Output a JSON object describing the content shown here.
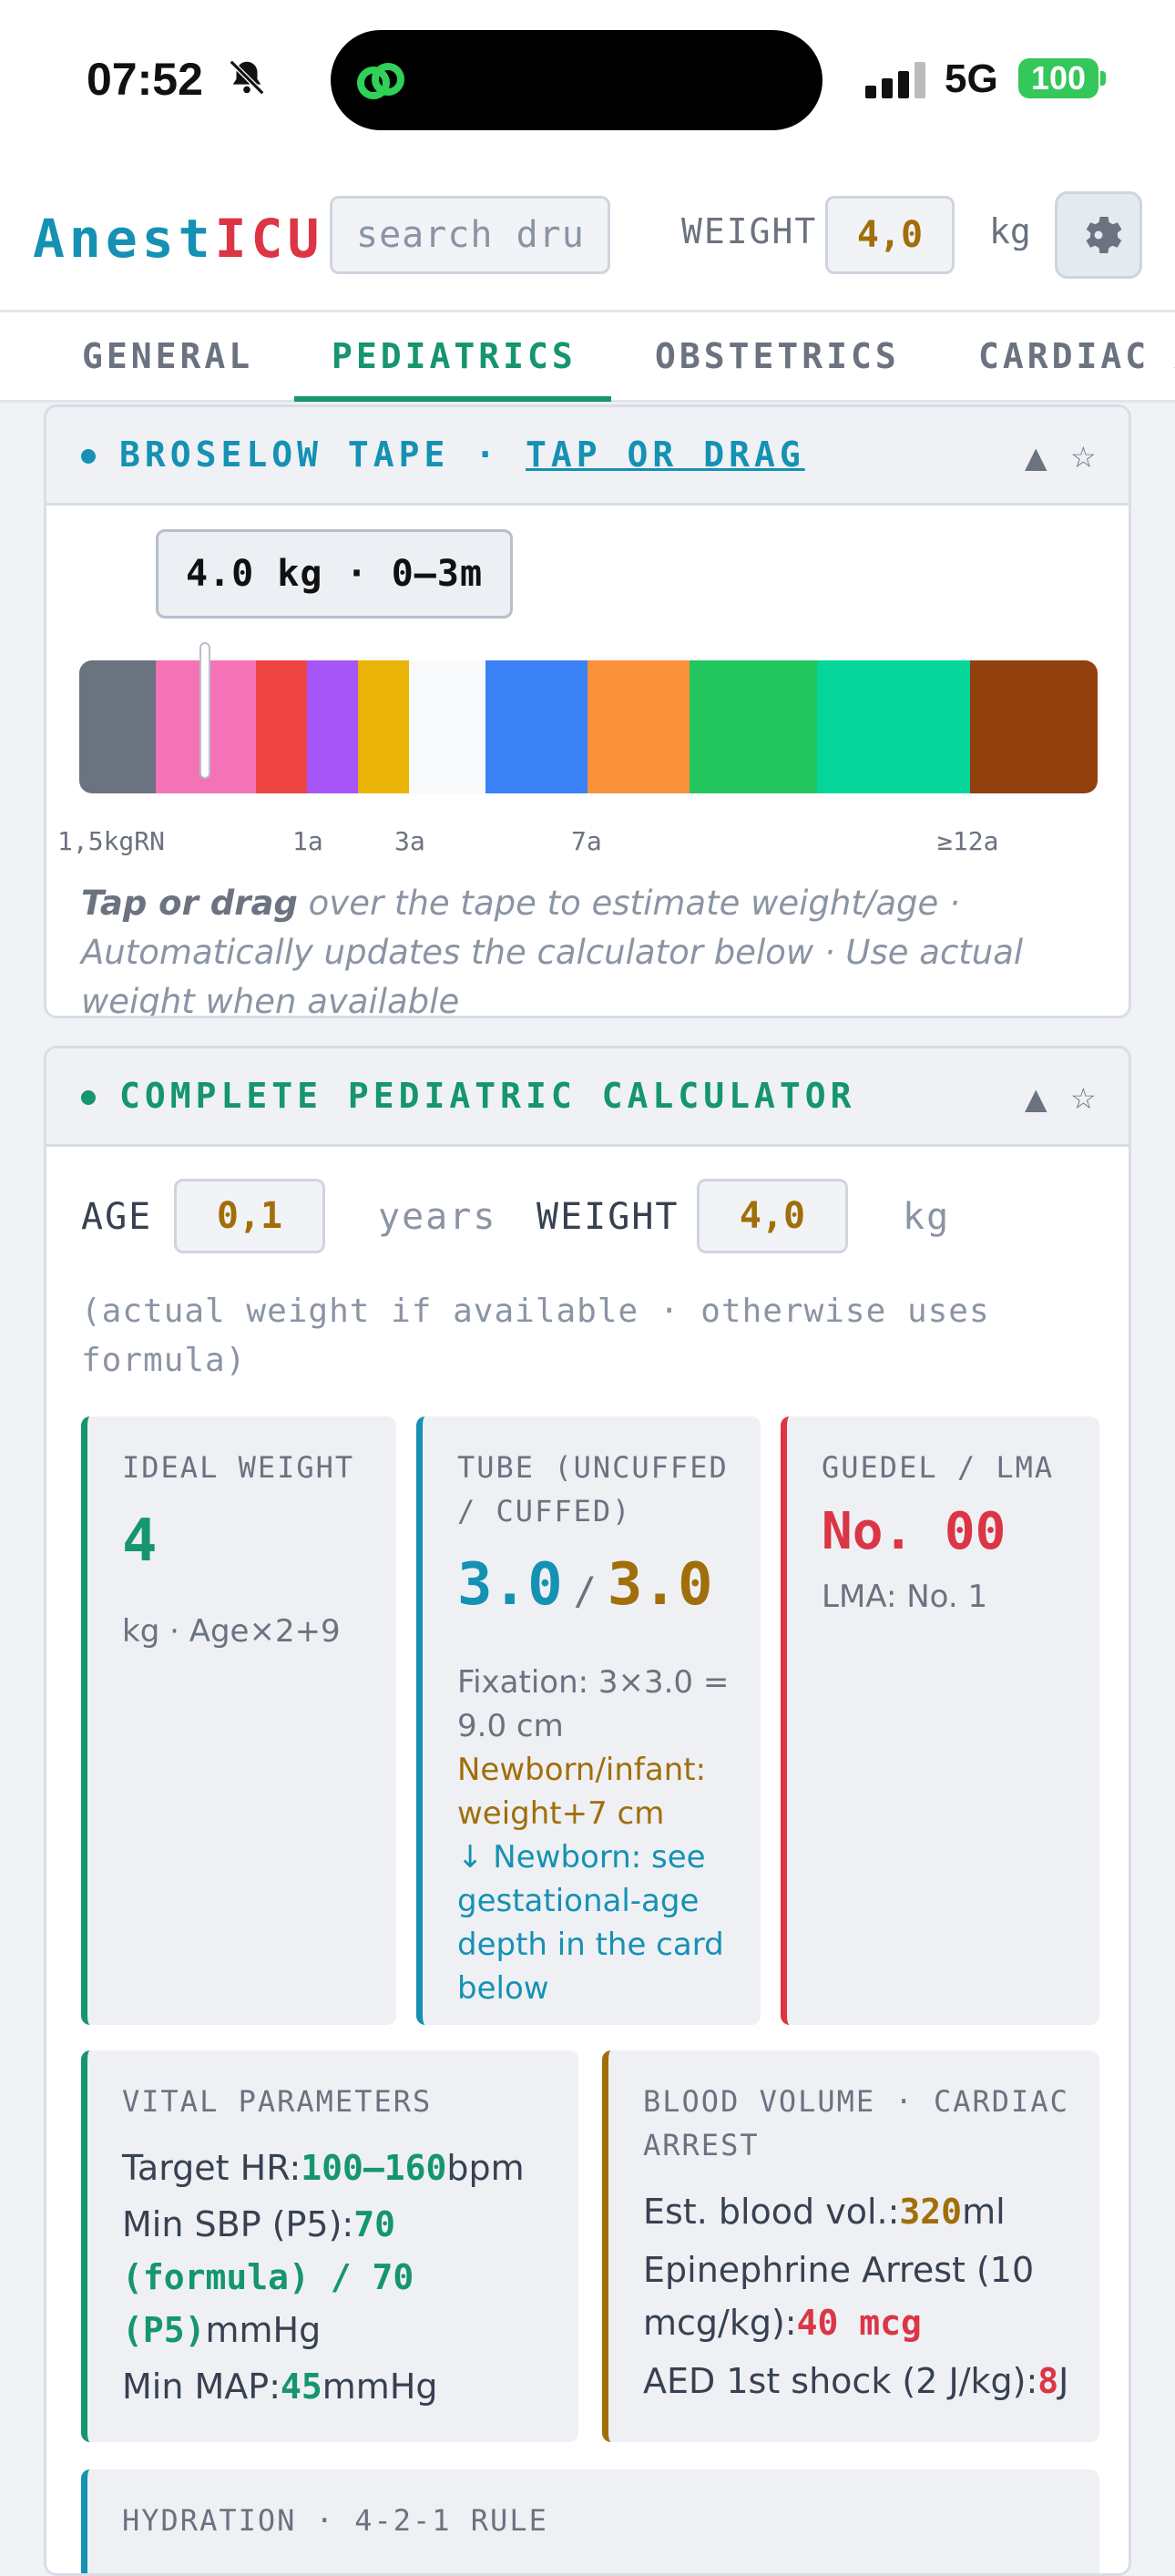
{
  "status_bar": {
    "time": "07:52",
    "network": "5G",
    "battery": "100"
  },
  "header": {
    "logo_part1": "Anest",
    "logo_part2": "ICU",
    "search_placeholder": "search dru",
    "weight_label": "WEIGHT",
    "weight_value": "4,0",
    "weight_unit": "kg",
    "settings_icon": "gear-icon"
  },
  "tabs": [
    "GENERAL",
    "PEDIATRICS",
    "OBSTETRICS",
    "CARDIAC A"
  ],
  "active_tab": "PEDIATRICS",
  "broselow": {
    "title_prefix": "BROSELOW TAPE · ",
    "title_link": "TAP OR DRAG",
    "collapse": "▲",
    "favorite": "☆",
    "bubble": "4.0 kg · 0–3m",
    "tape_position": 0.12,
    "tape_colors": [
      "#6b7280",
      "#f472b6",
      "#ef4444",
      "#a855f7",
      "#eab308",
      "#f8fafc",
      "#3b82f6",
      "#fb923c",
      "#22c55e",
      "#06d69a",
      "#92400e"
    ],
    "ticks": [
      "1,5kgRN",
      "1a",
      "3a",
      "7a",
      "≥12a"
    ],
    "hint_bold": "Tap or drag",
    "hint_rest": " over the tape to estimate weight/age · Automatically updates the calculator below · Use actual weight when available"
  },
  "calculator": {
    "title": "COMPLETE PEDIATRIC CALCULATOR",
    "collapse": "▲",
    "favorite": "☆",
    "age_label": "AGE",
    "age_value": "0,1",
    "age_unit": "years",
    "weight_label": "WEIGHT",
    "weight_value": "4,0",
    "weight_unit": "kg",
    "note": "(actual weight if available · otherwise uses formula)",
    "ideal": {
      "title": "IDEAL WEIGHT",
      "value": "4",
      "sub": "kg · Age×2+9"
    },
    "tube": {
      "title_1": "TUBE (UNCUFFED",
      "title_2": "/ CUFFED)",
      "uncuffed": "3.0",
      "sep": "/",
      "cuffed": "3.0",
      "fixation_1": "Fixation: 3×3.0 =",
      "fixation_2": "9.0 cm",
      "newborn_1": "Newborn/infant:",
      "newborn_2": "weight+7 cm",
      "see_1": "↓ Newborn: see",
      "see_2": "gestational-age",
      "see_3": "depth in the card",
      "see_4": "below"
    },
    "guedel": {
      "title": "GUEDEL / LMA",
      "value": "No. 00",
      "lma": "LMA: No. 1"
    },
    "vitals": {
      "title": "VITAL PARAMETERS",
      "hr_label": "Target HR:",
      "hr_value": "100–160",
      "hr_unit": "bpm",
      "sbp_label": "Min SBP (P5):",
      "sbp_value_1": "70",
      "sbp_value_2": "(formula) / 70",
      "sbp_value_3": "(P5)",
      "sbp_unit": "mmHg",
      "map_label": "Min MAP:",
      "map_value": "45",
      "map_unit": "mmHg"
    },
    "blood": {
      "title_1": "BLOOD VOLUME · CARDIAC",
      "title_2": "ARREST",
      "ebv_label": "Est. blood vol.:",
      "ebv_value": "320",
      "ebv_unit": "ml",
      "epi_label_1": "Epinephrine Arrest (10",
      "epi_label_2": "mcg/kg):",
      "epi_value": "40 mcg",
      "aed_label": "AED 1st shock (2 J/kg):",
      "aed_value": "8",
      "aed_unit": "J"
    },
    "hydration": {
      "title": "HYDRATION · 4-2-1 RULE"
    }
  },
  "colors": {
    "green": "#159570",
    "blue": "#1591b4",
    "red": "#dc3545",
    "amber": "#a16e0a"
  }
}
